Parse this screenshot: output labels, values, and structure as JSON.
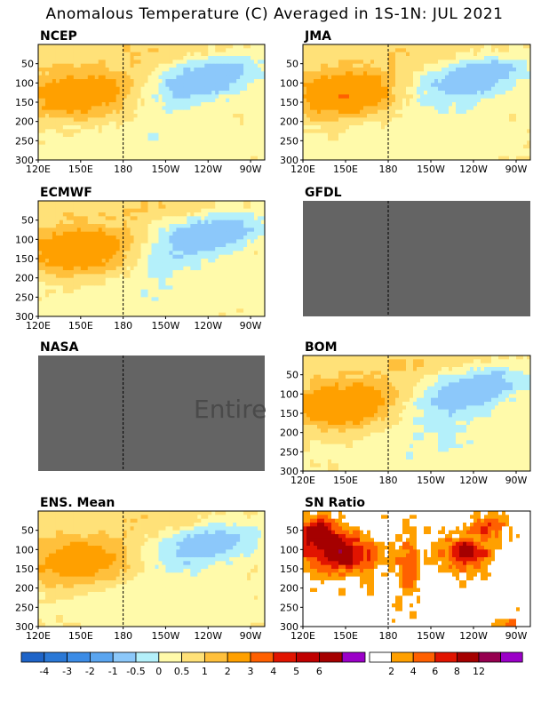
{
  "title": "Anomalous Temperature (C) Averaged in 1S-1N: JUL 2021",
  "watermark": "Entire Gr",
  "chart_data": [
    {
      "type": "heatmap",
      "title": "NCEP",
      "x_ticks": [
        "120E",
        "150E",
        "180",
        "150W",
        "120W",
        "90W"
      ],
      "y_ticks": [
        "50",
        "100",
        "150",
        "200",
        "250",
        "300"
      ],
      "ylim": [
        300,
        0
      ],
      "missing": false,
      "features": [
        {
          "kind": "warm_core",
          "lon": [
            120,
            180
          ],
          "depth": [
            60,
            190
          ],
          "max": 2.0
        },
        {
          "kind": "cold_tongue",
          "lon": [
            185,
            265
          ],
          "depth": [
            30,
            140
          ],
          "min": -1.5
        },
        {
          "kind": "shallow_warm",
          "lon": [
            150,
            270
          ],
          "depth": [
            0,
            60
          ],
          "max": 0.5
        }
      ]
    },
    {
      "type": "heatmap",
      "title": "JMA",
      "x_ticks": [
        "120E",
        "150E",
        "180",
        "150W",
        "120W",
        "90W"
      ],
      "y_ticks": [
        "50",
        "100",
        "150",
        "200",
        "250",
        "300"
      ],
      "ylim": [
        300,
        0
      ],
      "missing": false,
      "features": [
        {
          "kind": "warm_core",
          "lon": [
            120,
            185
          ],
          "depth": [
            60,
            190
          ],
          "max": 2.0
        },
        {
          "kind": "cold_tongue",
          "lon": [
            185,
            265
          ],
          "depth": [
            50,
            170
          ],
          "min": -1.5
        }
      ]
    },
    {
      "type": "heatmap",
      "title": "ECMWF",
      "x_ticks": [
        "120E",
        "150E",
        "180",
        "150W",
        "120W",
        "90W"
      ],
      "y_ticks": [
        "50",
        "100",
        "150",
        "200",
        "250",
        "300"
      ],
      "ylim": [
        300,
        0
      ],
      "missing": false,
      "features": [
        {
          "kind": "warm_core",
          "lon": [
            120,
            180
          ],
          "depth": [
            60,
            200
          ],
          "max": 2.0
        },
        {
          "kind": "cold_tongue",
          "lon": [
            185,
            275
          ],
          "depth": [
            40,
            180
          ],
          "min": -1.5
        }
      ]
    },
    {
      "type": "heatmap",
      "title": "GFDL",
      "x_ticks": [],
      "y_ticks": [],
      "ylim": [
        300,
        0
      ],
      "missing": true,
      "features": []
    },
    {
      "type": "heatmap",
      "title": "NASA",
      "x_ticks": [],
      "y_ticks": [],
      "ylim": [
        300,
        0
      ],
      "missing": true,
      "features": []
    },
    {
      "type": "heatmap",
      "title": "BOM",
      "x_ticks": [
        "120E",
        "150E",
        "180",
        "150W",
        "120W",
        "90W"
      ],
      "y_ticks": [
        "50",
        "100",
        "150",
        "200",
        "250",
        "300"
      ],
      "ylim": [
        300,
        0
      ],
      "missing": false,
      "features": [
        {
          "kind": "warm_core",
          "lon": [
            120,
            185
          ],
          "depth": [
            50,
            200
          ],
          "max": 2.0
        },
        {
          "kind": "cold_tongue",
          "lon": [
            185,
            265
          ],
          "depth": [
            30,
            200
          ],
          "min": -1.5
        }
      ]
    },
    {
      "type": "heatmap",
      "title": "ENS. Mean",
      "x_ticks": [
        "120E",
        "150E",
        "180",
        "150W",
        "120W",
        "90W"
      ],
      "y_ticks": [
        "50",
        "100",
        "150",
        "200",
        "250",
        "300"
      ],
      "ylim": [
        300,
        0
      ],
      "missing": false,
      "features": [
        {
          "kind": "warm_core",
          "lon": [
            120,
            185
          ],
          "depth": [
            60,
            190
          ],
          "max": 1.5
        },
        {
          "kind": "cold_tongue",
          "lon": [
            185,
            265
          ],
          "depth": [
            40,
            170
          ],
          "min": -1.5
        }
      ]
    },
    {
      "type": "heatmap",
      "title": "SN Ratio",
      "x_ticks": [
        "120E",
        "150E",
        "180",
        "150W",
        "120W",
        "90W"
      ],
      "y_ticks": [
        "50",
        "100",
        "150",
        "200",
        "250",
        "300"
      ],
      "ylim": [
        300,
        0
      ],
      "missing": false,
      "features": [
        {
          "kind": "high_snr",
          "lon": [
            120,
            180
          ],
          "depth": [
            0,
            200
          ],
          "max": 12
        },
        {
          "kind": "high_snr",
          "lon": [
            210,
            265
          ],
          "depth": [
            20,
            300
          ],
          "max": 12
        }
      ]
    }
  ],
  "colorbars": [
    {
      "name": "anomaly",
      "labels": [
        "-4",
        "-3",
        "-2",
        "-1",
        "-0.5",
        "0",
        "0.5",
        "1",
        "2",
        "3",
        "4",
        "5",
        "6"
      ],
      "colors": [
        "#1e64c8",
        "#2a78d6",
        "#3c8ce6",
        "#5aa5f0",
        "#8cc8fa",
        "#b4f0fa",
        "#fffaaa",
        "#ffe178",
        "#ffc03c",
        "#ffa000",
        "#ff6000",
        "#e11400",
        "#c00000",
        "#a50000",
        "#9b00c8"
      ]
    },
    {
      "name": "snr",
      "labels": [
        "2",
        "4",
        "6",
        "8",
        "12"
      ],
      "colors": [
        "#ffffff",
        "#ffa000",
        "#ff6000",
        "#e11400",
        "#a50000",
        "#960050",
        "#9b00c8"
      ]
    }
  ],
  "colors": {
    "missing": "#646464",
    "frame": "#000000"
  }
}
